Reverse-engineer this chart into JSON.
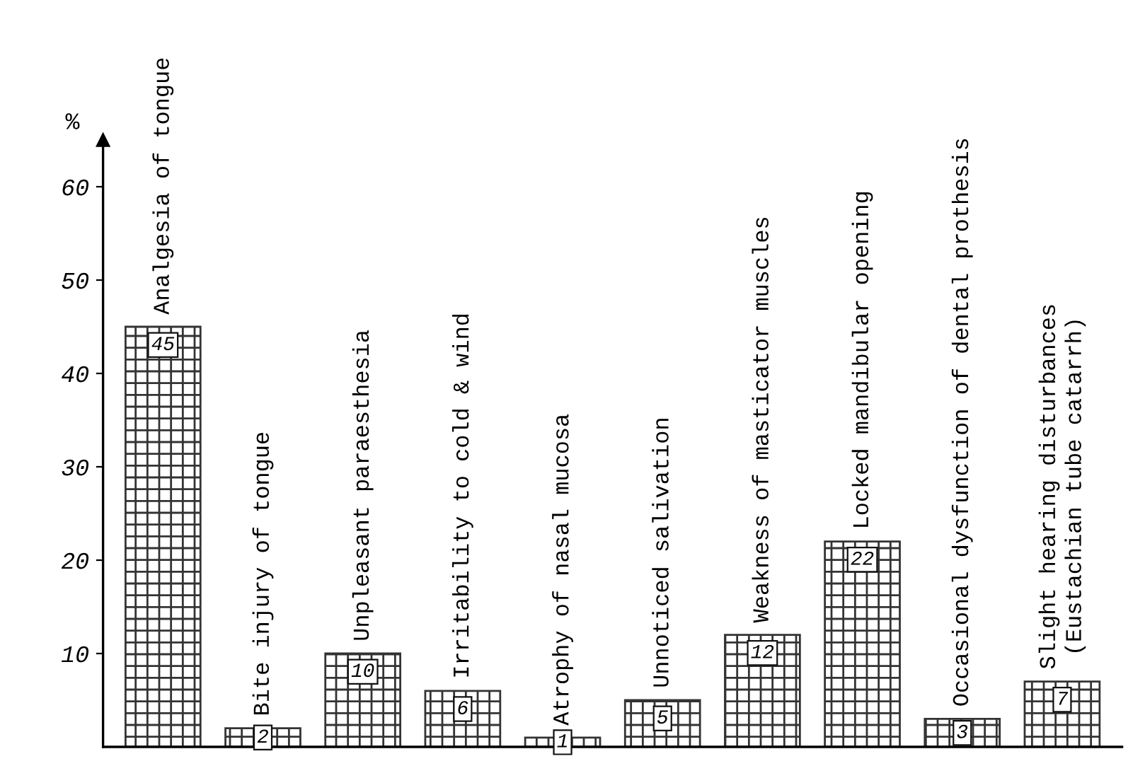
{
  "chart_data": {
    "type": "bar",
    "ylabel": "%",
    "categories": [
      "Analgesia of tongue",
      "Bite injury of tongue",
      "Unpleasant paraesthesia",
      "Irritability to cold & wind",
      "Atrophy of nasal mucosa",
      "Unnoticed salivation",
      "Weakness of masticator muscles",
      "Locked mandibular opening",
      "Occasional dysfunction of dental prothesis",
      "Slight hearing disturbances\n(Eustachian tube catarrh)"
    ],
    "values": [
      45,
      2,
      10,
      6,
      1,
      5,
      12,
      22,
      3,
      7
    ],
    "color": "#333333",
    "ylim": [
      0,
      65
    ],
    "yticks": [
      10,
      20,
      30,
      40,
      50,
      60
    ],
    "data_labels": true,
    "grid": false,
    "legend": false
  }
}
